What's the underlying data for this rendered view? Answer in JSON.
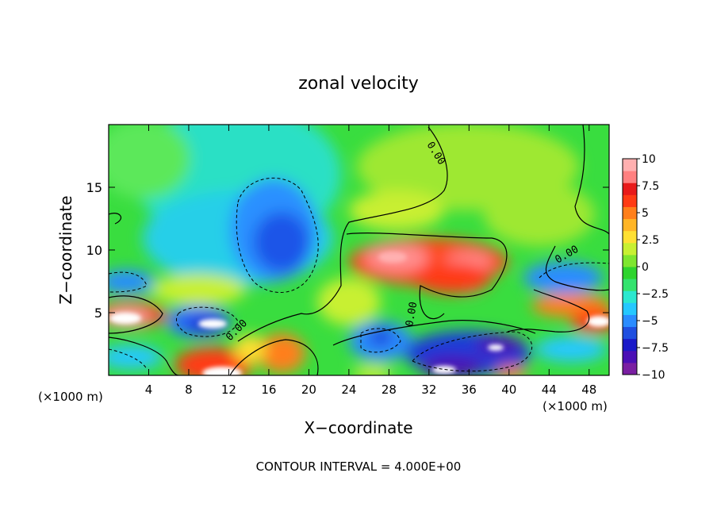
{
  "chart_data": {
    "type": "heatmap",
    "title": "zonal velocity",
    "xlabel": "X−coordinate",
    "ylabel": "Z−coordinate",
    "x_unit_left": "(×1000 m)",
    "x_unit_right": "(×1000 m)",
    "footer": "CONTOUR INTERVAL = 4.000E+00",
    "xlim": [
      0,
      50
    ],
    "ylim": [
      0,
      20
    ],
    "xticks": [
      4,
      8,
      12,
      16,
      20,
      24,
      28,
      32,
      36,
      40,
      44,
      48
    ],
    "yticks": [
      5,
      10,
      15
    ],
    "colorbar": {
      "range": [
        -10,
        10
      ],
      "ticks": [
        "10",
        "7.5",
        "5",
        "2.5",
        "0",
        "−2.5",
        "−5",
        "−7.5",
        "−10"
      ],
      "colors": [
        "#7a1fa2",
        "#4b0fb5",
        "#1a1ac8",
        "#1f4fe0",
        "#2a8cff",
        "#25c8ff",
        "#2be8cf",
        "#34e36e",
        "#2ed42e",
        "#7ee62f",
        "#c8f032",
        "#ffe033",
        "#ffb526",
        "#ff7f1a",
        "#ff3b14",
        "#e81a1a",
        "#ff8080",
        "#ffb0b0"
      ]
    },
    "contour_labels": [
      "0.00",
      "0.00",
      "0.00",
      "0.00"
    ],
    "features": [
      {
        "x": 10.5,
        "z": 4.0,
        "value": -10
      },
      {
        "x": 2.0,
        "z": 4.5,
        "value": 10
      },
      {
        "x": 48.0,
        "z": 4.2,
        "value": 10
      },
      {
        "x": 27.5,
        "z": 9.5,
        "value": 10
      },
      {
        "x": 35.0,
        "z": 9.0,
        "value": 8
      },
      {
        "x": 35.5,
        "z": 7.0,
        "value": 9
      },
      {
        "x": 17.0,
        "z": 10.5,
        "value": -7
      },
      {
        "x": 17.5,
        "z": 1.5,
        "value": 7
      },
      {
        "x": 34.0,
        "z": 0.8,
        "value": -9
      },
      {
        "x": 38.5,
        "z": 2.0,
        "value": -8
      },
      {
        "x": 27.0,
        "z": 2.8,
        "value": -6
      },
      {
        "x": 46.0,
        "z": 7.5,
        "value": -5
      },
      {
        "x": 3.0,
        "z": 7.5,
        "value": -5
      },
      {
        "x": 46.5,
        "z": 5.5,
        "value": 6
      },
      {
        "x": 33.5,
        "z": 15.5,
        "value": 1.5
      },
      {
        "x": 13.0,
        "z": 17.0,
        "value": -2
      }
    ]
  }
}
